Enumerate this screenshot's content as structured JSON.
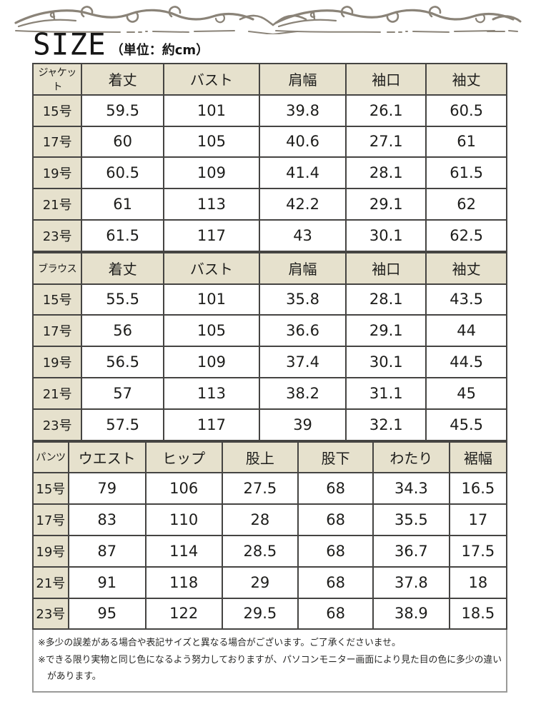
{
  "title": {
    "main": "SIZE",
    "unit": "（単位：約cm）"
  },
  "tables": [
    {
      "name": "ジャケット",
      "headers": [
        "着丈",
        "バスト",
        "肩幅",
        "袖口",
        "袖丈"
      ],
      "rows": [
        {
          "label": "15号",
          "values": [
            "59.5",
            "101",
            "39.8",
            "26.1",
            "60.5"
          ]
        },
        {
          "label": "17号",
          "values": [
            "60",
            "105",
            "40.6",
            "27.1",
            "61"
          ]
        },
        {
          "label": "19号",
          "values": [
            "60.5",
            "109",
            "41.4",
            "28.1",
            "61.5"
          ]
        },
        {
          "label": "21号",
          "values": [
            "61",
            "113",
            "42.2",
            "29.1",
            "62"
          ]
        },
        {
          "label": "23号",
          "values": [
            "61.5",
            "117",
            "43",
            "30.1",
            "62.5"
          ]
        }
      ]
    },
    {
      "name": "ブラウス",
      "headers": [
        "着丈",
        "バスト",
        "肩幅",
        "袖口",
        "袖丈"
      ],
      "rows": [
        {
          "label": "15号",
          "values": [
            "55.5",
            "101",
            "35.8",
            "28.1",
            "43.5"
          ]
        },
        {
          "label": "17号",
          "values": [
            "56",
            "105",
            "36.6",
            "29.1",
            "44"
          ]
        },
        {
          "label": "19号",
          "values": [
            "56.5",
            "109",
            "37.4",
            "30.1",
            "44.5"
          ]
        },
        {
          "label": "21号",
          "values": [
            "57",
            "113",
            "38.2",
            "31.1",
            "45"
          ]
        },
        {
          "label": "23号",
          "values": [
            "57.5",
            "117",
            "39",
            "32.1",
            "45.5"
          ]
        }
      ]
    },
    {
      "name": "パンツ",
      "headers": [
        "ウエスト",
        "ヒップ",
        "股上",
        "股下",
        "わたり",
        "裾幅"
      ],
      "rows": [
        {
          "label": "15号",
          "values": [
            "79",
            "106",
            "27.5",
            "68",
            "34.3",
            "16.5"
          ]
        },
        {
          "label": "17号",
          "values": [
            "83",
            "110",
            "28",
            "68",
            "35.5",
            "17"
          ]
        },
        {
          "label": "19号",
          "values": [
            "87",
            "114",
            "28.5",
            "68",
            "36.7",
            "17.5"
          ]
        },
        {
          "label": "21号",
          "values": [
            "91",
            "118",
            "29",
            "68",
            "37.8",
            "18"
          ]
        },
        {
          "label": "23号",
          "values": [
            "95",
            "122",
            "29.5",
            "68",
            "38.9",
            "18.5"
          ]
        }
      ]
    }
  ],
  "notes": [
    "※多少の誤差がある場合や表記サイズと異なる場合がございます。ご了承くださいませ。",
    "※できる限り実物と同じ色になるよう努力しておりますが、パソコンモニター画面により見た目の色に多少の違い",
    "があります。"
  ],
  "colors": {
    "header_bg": "#e6e1cd",
    "table_border": "#454442",
    "notes_border": "#9a9a98",
    "flourish": "#8a8378",
    "text": "#1d1d1b"
  }
}
